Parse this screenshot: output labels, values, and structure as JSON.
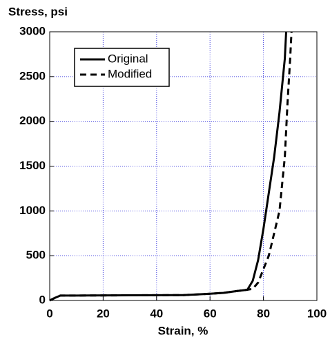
{
  "chart_data": {
    "type": "line",
    "y_label": "Stress, psi",
    "x_label": "Strain, %",
    "xlim": [
      0,
      100
    ],
    "xticks": [
      0,
      20,
      40,
      60,
      80,
      100
    ],
    "ylim": [
      0,
      3000
    ],
    "yticks": [
      0,
      500,
      1000,
      1500,
      2000,
      2500,
      3000
    ],
    "grid": true,
    "legend": "upper left",
    "series": [
      {
        "name": "Original",
        "color": "#000000",
        "dashed": false,
        "x": [
          0,
          2,
          4,
          10,
          30,
          50,
          60,
          65,
          70,
          74,
          76,
          78,
          80,
          82,
          84,
          86,
          88,
          88.5
        ],
        "values": [
          0,
          30,
          55,
          55,
          58,
          60,
          75,
          85,
          105,
          120,
          220,
          450,
          800,
          1200,
          1600,
          2100,
          2700,
          3000
        ]
      },
      {
        "name": "Modified",
        "color": "#000000",
        "dashed": true,
        "x": [
          0,
          2,
          4,
          10,
          30,
          50,
          60,
          65,
          70,
          74,
          76,
          78,
          80,
          82,
          84,
          86,
          88,
          89,
          90,
          90.5
        ],
        "values": [
          0,
          30,
          55,
          55,
          58,
          60,
          75,
          85,
          105,
          120,
          130,
          200,
          350,
          500,
          750,
          1000,
          1600,
          2200,
          2700,
          3000
        ]
      }
    ]
  }
}
